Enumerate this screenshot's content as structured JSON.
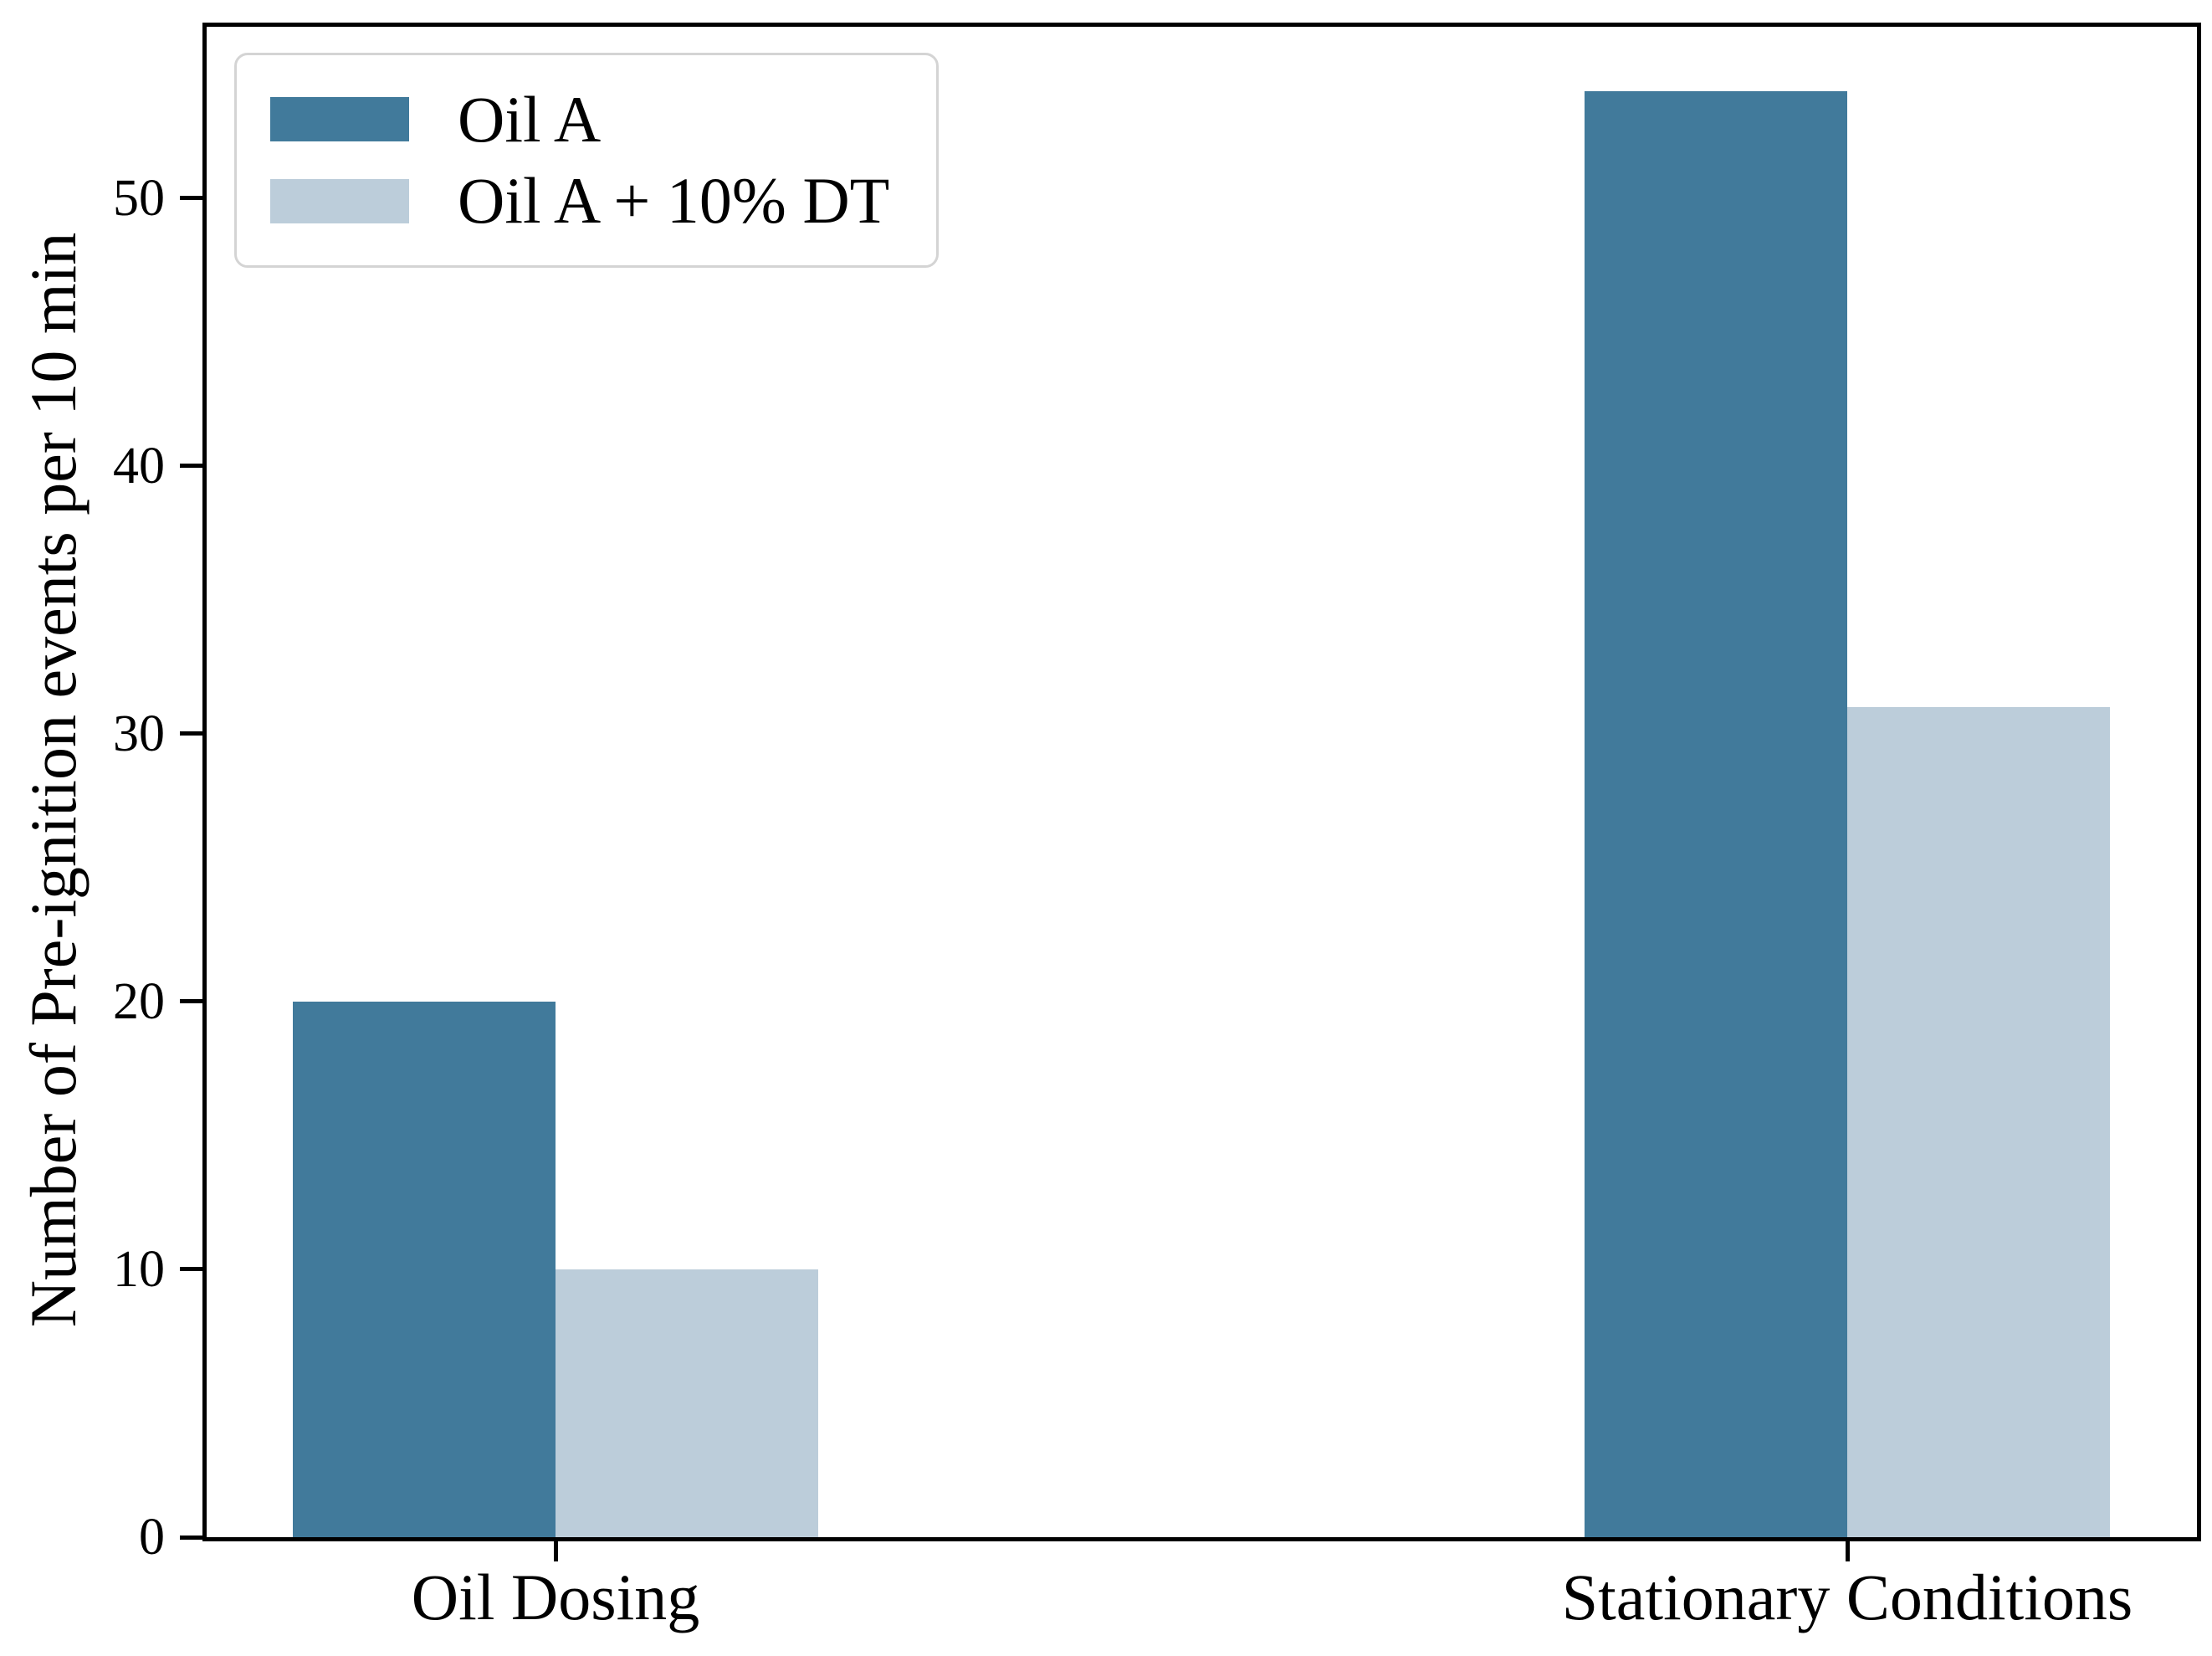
{
  "chart_data": {
    "type": "bar",
    "categories": [
      "Oil Dosing",
      "Stationary Conditions"
    ],
    "series": [
      {
        "name": "Oil A",
        "color": "#417a9b",
        "values": [
          20,
          54
        ]
      },
      {
        "name": "Oil A + 10% DT",
        "color": "#bccdda",
        "values": [
          10,
          31
        ]
      }
    ],
    "title": "",
    "xlabel": "",
    "ylabel": "Number of Pre-ignition events per 10 min",
    "ylim": [
      0,
      56.4
    ],
    "yticks": [
      0,
      10,
      20,
      30,
      40,
      50
    ],
    "grid": false,
    "legend_position": "upper-left",
    "axis_color": "#000000",
    "legend_border_color": "#d4d4d4"
  }
}
